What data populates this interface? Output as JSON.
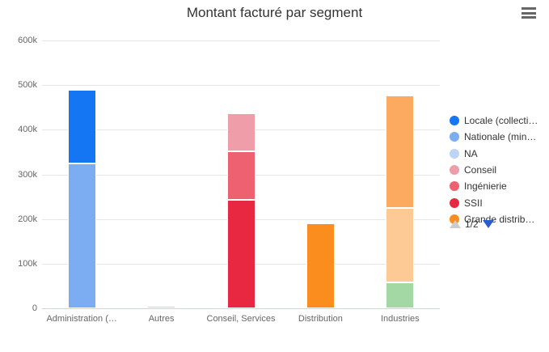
{
  "chart": {
    "title": "Montant facturé par segment",
    "context_menu": "hamburger-menu",
    "legend": {
      "items": [
        {
          "label": "Locale (collecti…",
          "color": "#1476f2"
        },
        {
          "label": "Nationale (min…",
          "color": "#7cadf2"
        },
        {
          "label": "NA",
          "color": "#bdd4f6"
        },
        {
          "label": "Conseil",
          "color": "#ef9ea9"
        },
        {
          "label": "Ingénierie",
          "color": "#ed6170"
        },
        {
          "label": "SSII",
          "color": "#e72840"
        },
        {
          "label": "Grande distrib…",
          "color": "#fb8d1e"
        }
      ],
      "pagination": {
        "label": "1/2",
        "up_arrow_color": "#cccccc",
        "down_arrow_color": "#2b5cce"
      }
    },
    "colors": {
      "gridline": "#e6e6e6",
      "axis_line": "#ccd6eb",
      "axis_label": "#666666",
      "title_text": "#333333",
      "legend_text": "#333333",
      "burger_icon": "#666666"
    }
  },
  "chart_data": {
    "type": "bar",
    "stacked": true,
    "title": "Montant facturé par segment",
    "xlabel": "",
    "ylabel": "",
    "ylim": [
      0,
      600000
    ],
    "grid": true,
    "legend_position": "right",
    "legend_pages": "1/2",
    "yticks": [
      0,
      100000,
      200000,
      300000,
      400000,
      500000,
      600000
    ],
    "ytick_labels": [
      "0",
      "100k",
      "200k",
      "300k",
      "400k",
      "500k",
      "600k"
    ],
    "categories": [
      "Administration (…",
      "Autres",
      "Conseil, Services",
      "Distribution",
      "Industries"
    ],
    "stacks": [
      {
        "category": "Administration (…",
        "total": 490000,
        "segments": [
          {
            "series": "Nationale (min…",
            "value": 325000,
            "color": "#7cadf2"
          },
          {
            "series": "Locale (collecti…",
            "value": 165000,
            "color": "#1476f2"
          }
        ]
      },
      {
        "category": "Autres",
        "total": 5000,
        "segments": [
          {
            "series": "NA",
            "value": 5000,
            "color": "#bdd4f6"
          }
        ]
      },
      {
        "category": "Conseil, Services",
        "total": 437000,
        "segments": [
          {
            "series": "SSII",
            "value": 243000,
            "color": "#e72840"
          },
          {
            "series": "Ingénierie",
            "value": 109000,
            "color": "#ed6170"
          },
          {
            "series": "Conseil",
            "value": 85000,
            "color": "#ef9ea9"
          }
        ]
      },
      {
        "category": "Distribution",
        "total": 191000,
        "segments": [
          {
            "series": "Grande distrib…",
            "value": 191000,
            "color": "#fb8d1e"
          }
        ]
      },
      {
        "category": "Industries",
        "total": 477000,
        "segments": [
          {
            "series": "",
            "value": 58000,
            "color": "#a3d8a4"
          },
          {
            "series": "",
            "value": 167000,
            "color": "#fdca96"
          },
          {
            "series": "",
            "value": 252000,
            "color": "#fbaa60"
          }
        ]
      }
    ]
  }
}
